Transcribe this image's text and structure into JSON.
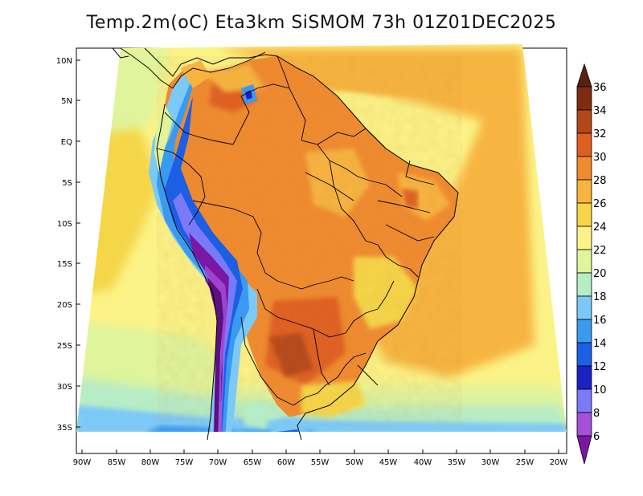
{
  "title": "Temp.2m(oC) Eta3km SiSMOM 73h 01Z01DEC2025",
  "map": {
    "lat_range": [
      -38,
      12
    ],
    "lon_range": [
      -90.5,
      -20.5
    ],
    "lat_ticks": [
      "10N",
      "5N",
      "EQ",
      "5S",
      "10S",
      "15S",
      "20S",
      "25S",
      "30S",
      "35S"
    ],
    "lon_ticks": [
      "90W",
      "85W",
      "80W",
      "75W",
      "70W",
      "65W",
      "60W",
      "55W",
      "50W",
      "45W",
      "40W",
      "35W",
      "30W",
      "25W",
      "20W"
    ],
    "units": "oC"
  },
  "colorbar": {
    "levels": [
      "6",
      "8",
      "10",
      "12",
      "14",
      "16",
      "18",
      "20",
      "22",
      "24",
      "26",
      "28",
      "30",
      "32",
      "34",
      "36"
    ],
    "colors": [
      "#7b17a5",
      "#a64fd8",
      "#7a7af8",
      "#1a22c4",
      "#1c5ee4",
      "#3a9af0",
      "#7cc9f7",
      "#b6ecc6",
      "#dff49b",
      "#fbf387",
      "#f6d648",
      "#f7b43f",
      "#f08a2f",
      "#df5f22",
      "#b4461a",
      "#7f2d12",
      "#5a2010"
    ]
  }
}
